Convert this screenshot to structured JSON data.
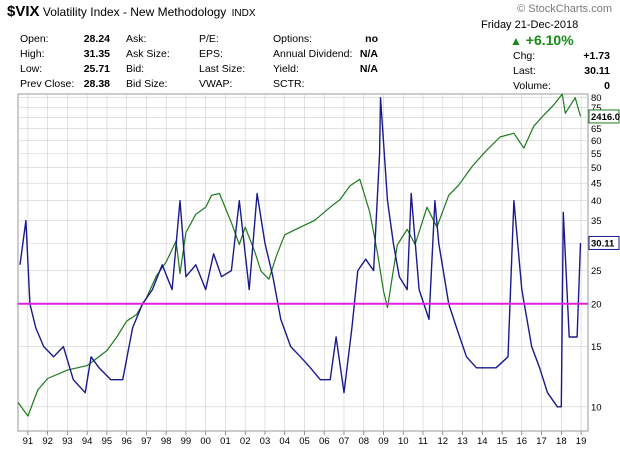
{
  "header": {
    "symbol": "$VIX",
    "name": "Volatility Index - New Methodology",
    "exchange": "INDX",
    "brand": "© StockCharts.com",
    "date": "Friday  21-Dec-2018",
    "change_pct": "+6.10%",
    "change_pct_color": "#158a15",
    "col1": [
      {
        "label": "Open:",
        "value": "28.24"
      },
      {
        "label": "High:",
        "value": "31.35"
      },
      {
        "label": "Low:",
        "value": "25.71"
      },
      {
        "label": "Prev Close:",
        "value": "28.38"
      }
    ],
    "col2": [
      {
        "label": "Ask:",
        "value": ""
      },
      {
        "label": "Ask Size:",
        "value": ""
      },
      {
        "label": "Bid:",
        "value": ""
      },
      {
        "label": "Bid Size:",
        "value": ""
      }
    ],
    "col3": [
      {
        "label": "P/E:",
        "value": ""
      },
      {
        "label": "EPS:",
        "value": ""
      },
      {
        "label": "Last Size:",
        "value": ""
      },
      {
        "label": "VWAP:",
        "value": ""
      }
    ],
    "col4": [
      {
        "label": "Options:",
        "value": "no"
      },
      {
        "label": "Annual Dividend:",
        "value": "N/A"
      },
      {
        "label": "Yield:",
        "value": "N/A"
      },
      {
        "label": "SCTR:",
        "value": ""
      }
    ],
    "col5": [
      {
        "label": "Chg:",
        "value": "+1.73"
      },
      {
        "label": "Last:",
        "value": "30.11"
      },
      {
        "label": "Volume:",
        "value": "0"
      }
    ]
  },
  "chart_data": {
    "type": "line",
    "x_tick_labels": [
      "91",
      "92",
      "93",
      "94",
      "95",
      "96",
      "97",
      "98",
      "99",
      "00",
      "01",
      "02",
      "03",
      "04",
      "05",
      "06",
      "07",
      "08",
      "09",
      "10",
      "11",
      "12",
      "13",
      "14",
      "15",
      "16",
      "17",
      "18",
      "19"
    ],
    "y_scale": "log",
    "ylim": [
      8.5,
      82
    ],
    "y_tick_labels": [
      "80",
      "75",
      "70",
      "65",
      "60",
      "55",
      "50",
      "45",
      "40",
      "35",
      "30",
      "25",
      "20",
      "15",
      "10"
    ],
    "y_tick_values": [
      80,
      75,
      70,
      65,
      60,
      55,
      50,
      45,
      40,
      35,
      30,
      25,
      20,
      15,
      10
    ],
    "overlay_value_label": "2416.00",
    "last_value_label": "30.11",
    "horizontal_line": {
      "value": 20,
      "color": "#e020e0"
    },
    "colors": {
      "vix": "#1a1a8c",
      "overlay": "#1e7a1e",
      "grid": "#cfcfcf"
    },
    "series": [
      {
        "key": "vix",
        "x": [
          1990.6,
          1990.9,
          1991.1,
          1991.4,
          1991.8,
          1992.3,
          1992.8,
          1993.3,
          1993.9,
          1994.2,
          1994.6,
          1995.2,
          1995.8,
          1996.3,
          1996.8,
          1997.3,
          1997.8,
          1998.3,
          1998.7,
          1999.0,
          1999.5,
          2000.0,
          2000.4,
          2000.8,
          2001.3,
          2001.7,
          2002.2,
          2002.6,
          2003.0,
          2003.4,
          2003.8,
          2004.3,
          2004.8,
          2005.3,
          2005.8,
          2006.3,
          2006.6,
          2007.0,
          2007.4,
          2007.7,
          2008.1,
          2008.5,
          2008.8,
          2008.85,
          2009.2,
          2009.5,
          2009.8,
          2010.2,
          2010.4,
          2010.8,
          2011.3,
          2011.6,
          2011.8,
          2012.3,
          2012.7,
          2013.2,
          2013.7,
          2014.2,
          2014.7,
          2015.3,
          2015.6,
          2016.0,
          2016.5,
          2016.9,
          2017.3,
          2017.8,
          2018.0,
          2018.1,
          2018.4,
          2018.8,
          2018.97
        ],
        "y": [
          26,
          35,
          20,
          17,
          15,
          14,
          15,
          12,
          11,
          14,
          13,
          12,
          12,
          17,
          20,
          22,
          26,
          22,
          40,
          24,
          26,
          22,
          28,
          24,
          25,
          40,
          22,
          42,
          30,
          24,
          18,
          15,
          14,
          13,
          12,
          12,
          16,
          11,
          17,
          25,
          27,
          25,
          55,
          80,
          40,
          30,
          24,
          22,
          42,
          22,
          18,
          40,
          30,
          20,
          17,
          14,
          13,
          13,
          13,
          14,
          40,
          22,
          15,
          13,
          11,
          10,
          10,
          37,
          16,
          16,
          30.11
        ]
      },
      {
        "key": "overlay",
        "x": [
          1990.5,
          1991.0,
          1991.5,
          1992.0,
          1993.0,
          1994.0,
          1995.0,
          1995.5,
          1996.0,
          1996.5,
          1997.0,
          1997.5,
          1998.0,
          1998.5,
          1998.7,
          1999.0,
          1999.5,
          2000.0,
          2000.3,
          2000.7,
          2001.0,
          2001.3,
          2001.7,
          2002.0,
          2002.5,
          2002.8,
          2003.2,
          2003.6,
          2004.0,
          2004.8,
          2005.5,
          2006.3,
          2006.8,
          2007.3,
          2007.8,
          2008.3,
          2008.7,
          2009.0,
          2009.2,
          2009.7,
          2010.2,
          2010.6,
          2011.2,
          2011.7,
          2012.3,
          2012.8,
          2013.5,
          2014.2,
          2014.9,
          2015.6,
          2016.1,
          2016.6,
          2017.1,
          2017.6,
          2018.05,
          2018.2,
          2018.7,
          2018.97
        ],
        "y": [
          10.3,
          9.4,
          11.2,
          12.1,
          12.8,
          13.2,
          14.6,
          16.0,
          17.8,
          18.6,
          20.8,
          24.1,
          26.5,
          30.5,
          24.5,
          32.3,
          36.5,
          38.3,
          41.5,
          42.0,
          38.0,
          34.5,
          29.8,
          33.5,
          28.2,
          24.9,
          23.6,
          27.8,
          31.8,
          33.5,
          35.0,
          38.3,
          40.3,
          44.2,
          46.2,
          37.1,
          28.0,
          21.8,
          19.5,
          29.7,
          33.0,
          29.8,
          38.3,
          33.5,
          41.5,
          44.4,
          50.5,
          56.0,
          61.4,
          63.0,
          57.0,
          66.0,
          71.0,
          76.0,
          82.0,
          72.0,
          80.0,
          70.5
        ]
      }
    ]
  }
}
